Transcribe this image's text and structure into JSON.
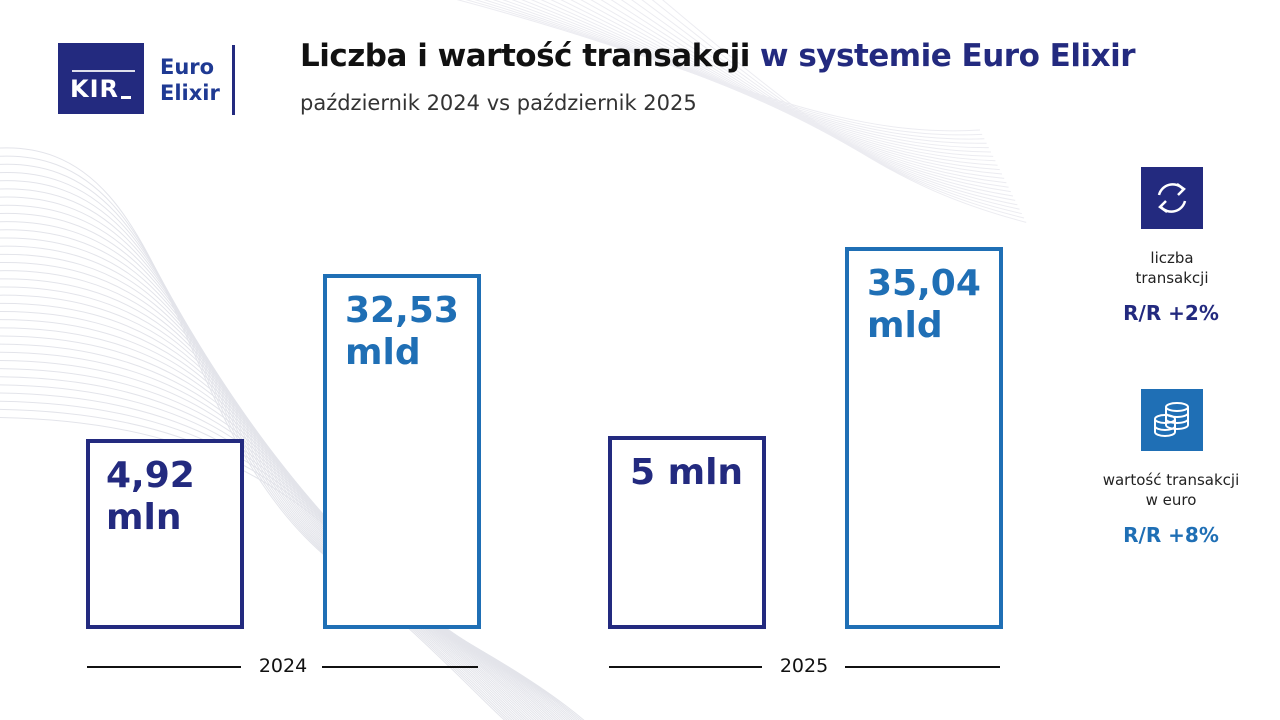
{
  "logo": {
    "kir": "KIR",
    "euro": "Euro",
    "elixir": "Elixir"
  },
  "title": {
    "part1": "Liczba i wartość transakcji",
    "part2": "w systemie Euro Elixir"
  },
  "subtitle": "październik 2024 vs październik 2025",
  "colors": {
    "navy": "#232a7f",
    "blue": "#1f6fb5"
  },
  "chart_data": {
    "type": "bar",
    "categories": [
      "2024",
      "2025"
    ],
    "series": [
      {
        "name": "liczba transakcji",
        "values": [
          4.92,
          5
        ],
        "units": "mln",
        "labels": [
          "4,92\nmln",
          "5 mln"
        ]
      },
      {
        "name": "wartość transakcji w euro",
        "values": [
          32.53,
          35.04
        ],
        "units": "mld",
        "labels": [
          "32,53\nmld",
          "35,04\nmld"
        ]
      }
    ],
    "ylabel": "",
    "xlabel": ""
  },
  "side": {
    "count": {
      "icon": "exchange-arrows-icon",
      "label": "liczba\ntransakcji",
      "change": "R/R +2%"
    },
    "value": {
      "icon": "coins-stack-icon",
      "label": "wartość transakcji\nw euro",
      "change": "R/R +8%"
    }
  }
}
